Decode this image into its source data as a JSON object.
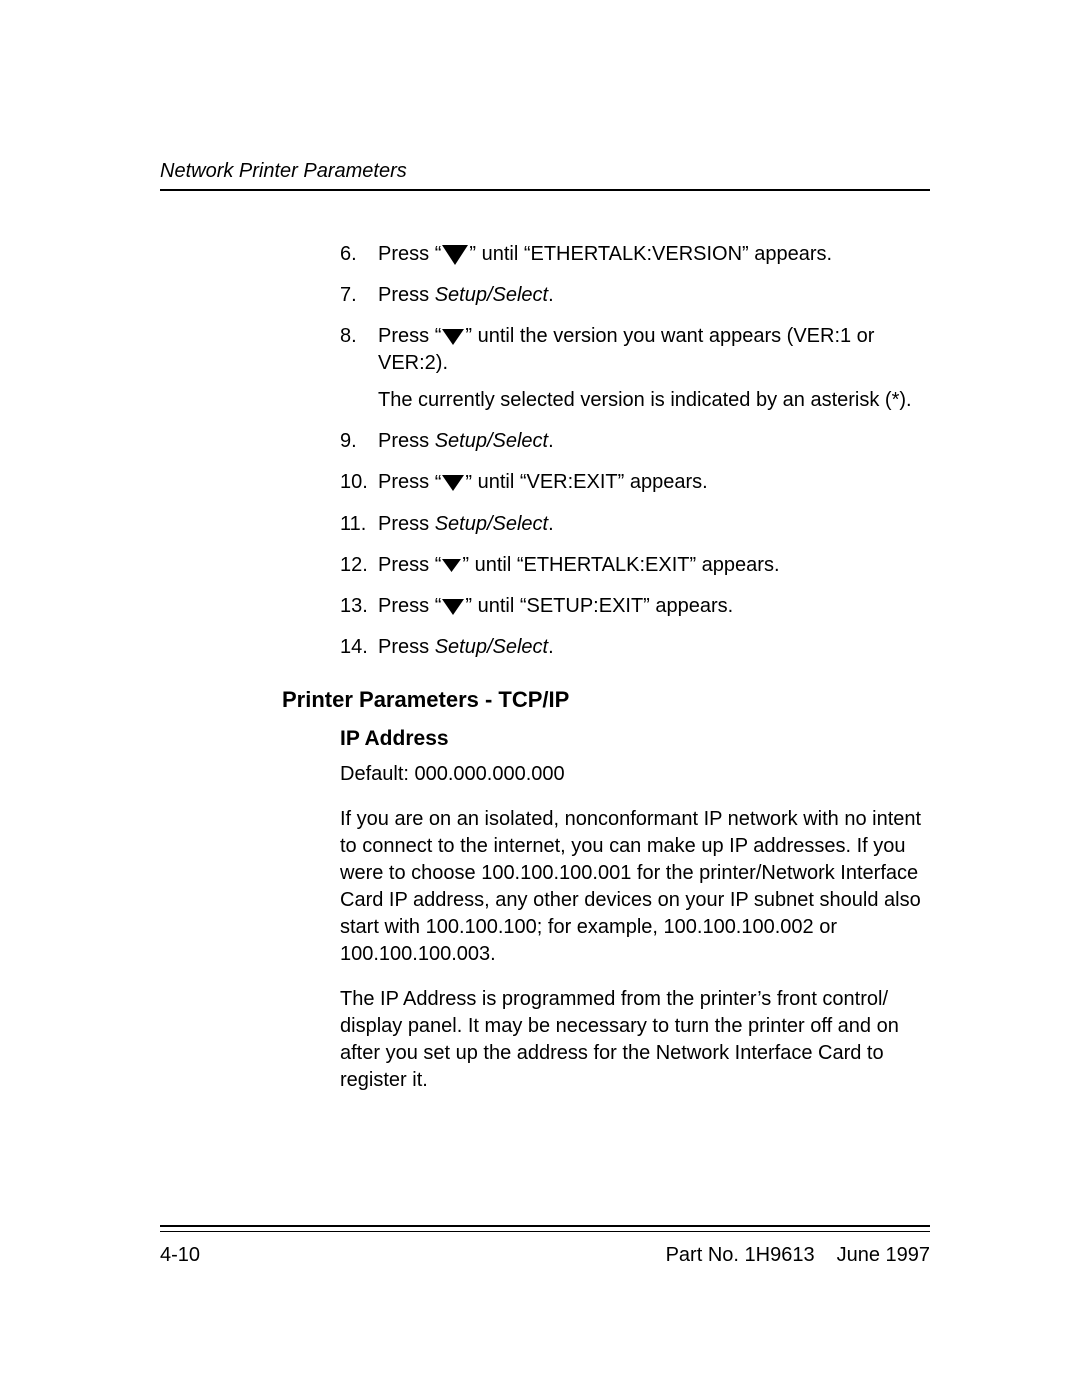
{
  "header": {
    "title": "Network Printer Parameters"
  },
  "icon": {
    "down_triangle_color": "#000000",
    "quote_open": "“",
    "quote_close": "”"
  },
  "steps": [
    {
      "n": "6.",
      "pre": "Press  ",
      "arrow": "L",
      "post": "   until “ETHERTALK:VERSION” appears."
    },
    {
      "n": "7.",
      "plain_pre": "Press ",
      "italic": "Setup/Select",
      "plain_post": "."
    },
    {
      "n": "8.",
      "pre": "Press   ",
      "arrow": "M",
      "post": "    until the version you want appears (VER:1 or VER:2).",
      "extra": "The currently selected version is indicated by an asterisk (*)."
    },
    {
      "n": "9.",
      "plain_pre": "Press ",
      "italic": "Setup/Select",
      "plain_post": "."
    },
    {
      "n": "10.",
      "pre": "Press   ",
      "arrow": "M",
      "post": "    until “VER:EXIT” appears."
    },
    {
      "n": "11.",
      "plain_pre": "Press ",
      "italic": "Setup/Select",
      "plain_post": "."
    },
    {
      "n": "12.",
      "pre": "Press   ",
      "arrow": "S",
      "post": "  until “ETHERTALK:EXIT” appears."
    },
    {
      "n": "13.",
      "pre": "Press  ",
      "arrow": "M",
      "post": "    until “SETUP:EXIT” appears."
    },
    {
      "n": "14.",
      "plain_pre": "Press ",
      "italic": "Setup/Select",
      "plain_post": "."
    }
  ],
  "section": {
    "title": "Printer Parameters - TCP/IP",
    "sub": {
      "title": "IP Address",
      "default_line": "Default: 000.000.000.000",
      "para1": "If you are on an isolated, nonconformant IP network with no intent to connect to the internet, you can make up IP addresses. If you were to choose 100.100.100.001 for the printer/Network Interface Card IP address, any other devices on your IP subnet should also start with 100.100.100; for example, 100.100.100.002 or 100.100.100.003.",
      "para2": "The IP Address is programmed from the printer’s front control/ display panel. It may be necessary to turn the printer off and on after you set up the address for the Network Interface Card to register it."
    }
  },
  "footer": {
    "page": "4-10",
    "part": "Part No. 1H9613",
    "date": "June 1997"
  },
  "arrow_sizes": {
    "L": 22,
    "M": 18,
    "S": 15
  }
}
